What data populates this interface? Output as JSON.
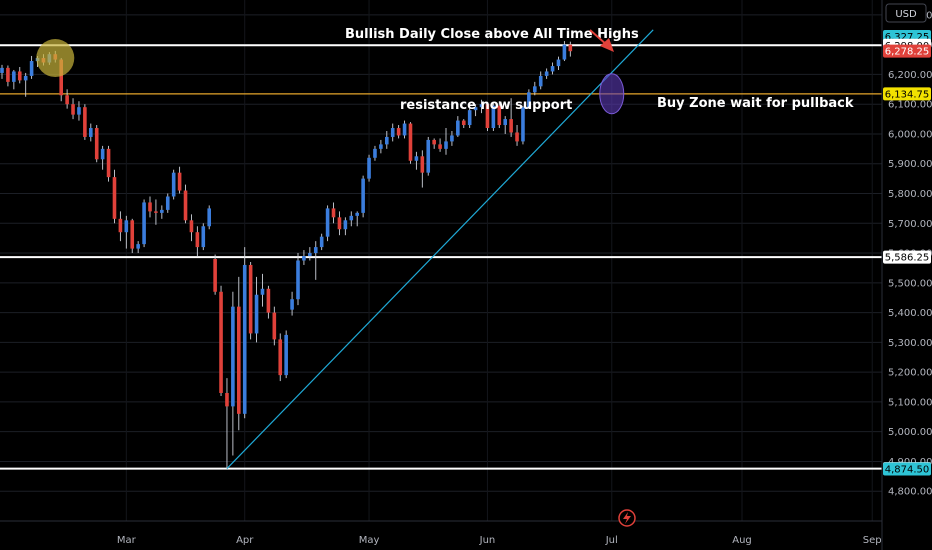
{
  "axis": {
    "currency": "USD"
  },
  "colors": {
    "background": "#000000",
    "up": "#3b7ddd",
    "down": "#e0413a",
    "trendline": "#1fa9d6",
    "resistance": "#e5a52a",
    "hline": "#ffffff",
    "badge_cyan": "#2ec4d6",
    "badge_red": "#e0413a",
    "badge_yellow": "#f2e100",
    "highlight_yellow": "#c8b43a",
    "highlight_purple": "#5b3bb5"
  },
  "chart_data": {
    "type": "candlestick",
    "xlabel": "",
    "ylabel": "",
    "ylim": [
      4700,
      6450
    ],
    "grid": true,
    "y_ticks": [
      4800,
      4900,
      5000,
      5100,
      5200,
      5300,
      5400,
      5500,
      5600,
      5700,
      5800,
      5900,
      6000,
      6100,
      6200,
      6300,
      6400
    ],
    "y_tick_labels": [
      "4,800.00",
      "4,900.00",
      "5,000.00",
      "5,100.00",
      "5,200.00",
      "5,300.00",
      "5,400.00",
      "5,500.00",
      "5,600.00",
      "5,700.00",
      "5,800.00",
      "5,900.00",
      "6,000.00",
      "6,100.00",
      "6,200.00",
      "6,300.00",
      "6,400.00"
    ],
    "x_labels": [
      {
        "label": "Mar",
        "index": 21
      },
      {
        "label": "Apr",
        "index": 41
      },
      {
        "label": "May",
        "index": 62
      },
      {
        "label": "Jun",
        "index": 82
      },
      {
        "label": "Jul",
        "index": 103
      },
      {
        "label": "Aug",
        "index": 125
      },
      {
        "label": "Sep",
        "index": 147
      }
    ],
    "candles": [
      {
        "o": 6205,
        "h": 6232,
        "l": 6185,
        "c": 6222
      },
      {
        "o": 6222,
        "h": 6230,
        "l": 6160,
        "c": 6175
      },
      {
        "o": 6175,
        "h": 6215,
        "l": 6150,
        "c": 6210
      },
      {
        "o": 6210,
        "h": 6225,
        "l": 6170,
        "c": 6180
      },
      {
        "o": 6180,
        "h": 6205,
        "l": 6125,
        "c": 6195
      },
      {
        "o": 6195,
        "h": 6262,
        "l": 6185,
        "c": 6245
      },
      {
        "o": 6245,
        "h": 6262,
        "l": 6225,
        "c": 6255
      },
      {
        "o": 6255,
        "h": 6268,
        "l": 6230,
        "c": 6240
      },
      {
        "o": 6240,
        "h": 6275,
        "l": 6232,
        "c": 6268
      },
      {
        "o": 6268,
        "h": 6279,
        "l": 6240,
        "c": 6250
      },
      {
        "o": 6250,
        "h": 6255,
        "l": 6110,
        "c": 6130
      },
      {
        "o": 6130,
        "h": 6150,
        "l": 6085,
        "c": 6100
      },
      {
        "o": 6100,
        "h": 6120,
        "l": 6050,
        "c": 6065
      },
      {
        "o": 6065,
        "h": 6110,
        "l": 6045,
        "c": 6090
      },
      {
        "o": 6090,
        "h": 6100,
        "l": 5980,
        "c": 5990
      },
      {
        "o": 5990,
        "h": 6035,
        "l": 5975,
        "c": 6020
      },
      {
        "o": 6020,
        "h": 6030,
        "l": 5905,
        "c": 5915
      },
      {
        "o": 5915,
        "h": 5960,
        "l": 5880,
        "c": 5950
      },
      {
        "o": 5950,
        "h": 5960,
        "l": 5840,
        "c": 5855
      },
      {
        "o": 5855,
        "h": 5880,
        "l": 5700,
        "c": 5715
      },
      {
        "o": 5715,
        "h": 5740,
        "l": 5640,
        "c": 5670
      },
      {
        "o": 5670,
        "h": 5725,
        "l": 5615,
        "c": 5710
      },
      {
        "o": 5710,
        "h": 5715,
        "l": 5600,
        "c": 5615
      },
      {
        "o": 5615,
        "h": 5640,
        "l": 5600,
        "c": 5630
      },
      {
        "o": 5630,
        "h": 5780,
        "l": 5620,
        "c": 5770
      },
      {
        "o": 5770,
        "h": 5790,
        "l": 5720,
        "c": 5740
      },
      {
        "o": 5740,
        "h": 5780,
        "l": 5695,
        "c": 5735
      },
      {
        "o": 5735,
        "h": 5760,
        "l": 5715,
        "c": 5745
      },
      {
        "o": 5745,
        "h": 5800,
        "l": 5735,
        "c": 5790
      },
      {
        "o": 5790,
        "h": 5880,
        "l": 5780,
        "c": 5870
      },
      {
        "o": 5870,
        "h": 5890,
        "l": 5800,
        "c": 5810
      },
      {
        "o": 5810,
        "h": 5830,
        "l": 5700,
        "c": 5710
      },
      {
        "o": 5710,
        "h": 5730,
        "l": 5640,
        "c": 5670
      },
      {
        "o": 5670,
        "h": 5690,
        "l": 5590,
        "c": 5620
      },
      {
        "o": 5620,
        "h": 5700,
        "l": 5610,
        "c": 5690
      },
      {
        "o": 5690,
        "h": 5760,
        "l": 5680,
        "c": 5750
      },
      {
        "o": 5580,
        "h": 5595,
        "l": 5460,
        "c": 5470
      },
      {
        "o": 5470,
        "h": 5490,
        "l": 5120,
        "c": 5130
      },
      {
        "o": 5130,
        "h": 5180,
        "l": 4875,
        "c": 5085
      },
      {
        "o": 5085,
        "h": 5470,
        "l": 4920,
        "c": 5420
      },
      {
        "o": 5420,
        "h": 5520,
        "l": 5005,
        "c": 5060
      },
      {
        "o": 5060,
        "h": 5620,
        "l": 5045,
        "c": 5560
      },
      {
        "o": 5560,
        "h": 5570,
        "l": 5310,
        "c": 5330
      },
      {
        "o": 5330,
        "h": 5520,
        "l": 5300,
        "c": 5460
      },
      {
        "o": 5460,
        "h": 5530,
        "l": 5420,
        "c": 5480
      },
      {
        "o": 5480,
        "h": 5490,
        "l": 5380,
        "c": 5400
      },
      {
        "o": 5400,
        "h": 5420,
        "l": 5290,
        "c": 5310
      },
      {
        "o": 5310,
        "h": 5330,
        "l": 5170,
        "c": 5190
      },
      {
        "o": 5190,
        "h": 5340,
        "l": 5180,
        "c": 5325
      },
      {
        "o": 5410,
        "h": 5470,
        "l": 5390,
        "c": 5445
      },
      {
        "o": 5445,
        "h": 5600,
        "l": 5425,
        "c": 5575
      },
      {
        "o": 5575,
        "h": 5610,
        "l": 5560,
        "c": 5590
      },
      {
        "o": 5590,
        "h": 5620,
        "l": 5575,
        "c": 5600
      },
      {
        "o": 5600,
        "h": 5640,
        "l": 5510,
        "c": 5620
      },
      {
        "o": 5620,
        "h": 5665,
        "l": 5610,
        "c": 5655
      },
      {
        "o": 5655,
        "h": 5760,
        "l": 5640,
        "c": 5750
      },
      {
        "o": 5750,
        "h": 5770,
        "l": 5700,
        "c": 5720
      },
      {
        "o": 5720,
        "h": 5740,
        "l": 5660,
        "c": 5680
      },
      {
        "o": 5680,
        "h": 5720,
        "l": 5660,
        "c": 5710
      },
      {
        "o": 5710,
        "h": 5740,
        "l": 5690,
        "c": 5725
      },
      {
        "o": 5725,
        "h": 5740,
        "l": 5690,
        "c": 5735
      },
      {
        "o": 5735,
        "h": 5860,
        "l": 5720,
        "c": 5850
      },
      {
        "o": 5850,
        "h": 5930,
        "l": 5840,
        "c": 5920
      },
      {
        "o": 5920,
        "h": 5960,
        "l": 5910,
        "c": 5950
      },
      {
        "o": 5950,
        "h": 5980,
        "l": 5935,
        "c": 5965
      },
      {
        "o": 5965,
        "h": 6010,
        "l": 5950,
        "c": 5990
      },
      {
        "o": 5990,
        "h": 6035,
        "l": 5975,
        "c": 6020
      },
      {
        "o": 6020,
        "h": 6030,
        "l": 5985,
        "c": 5995
      },
      {
        "o": 5995,
        "h": 6045,
        "l": 5985,
        "c": 6035
      },
      {
        "o": 6035,
        "h": 6040,
        "l": 5900,
        "c": 5910
      },
      {
        "o": 5910,
        "h": 5940,
        "l": 5880,
        "c": 5925
      },
      {
        "o": 5925,
        "h": 5945,
        "l": 5820,
        "c": 5870
      },
      {
        "o": 5870,
        "h": 5990,
        "l": 5860,
        "c": 5980
      },
      {
        "o": 5980,
        "h": 5985,
        "l": 5950,
        "c": 5965
      },
      {
        "o": 5965,
        "h": 5985,
        "l": 5940,
        "c": 5950
      },
      {
        "o": 5950,
        "h": 6020,
        "l": 5930,
        "c": 5975
      },
      {
        "o": 5975,
        "h": 6010,
        "l": 5960,
        "c": 5995
      },
      {
        "o": 5995,
        "h": 6060,
        "l": 5990,
        "c": 6045
      },
      {
        "o": 6045,
        "h": 6050,
        "l": 6020,
        "c": 6030
      },
      {
        "o": 6030,
        "h": 6090,
        "l": 6020,
        "c": 6080
      },
      {
        "o": 6080,
        "h": 6100,
        "l": 6060,
        "c": 6090
      },
      {
        "o": 6090,
        "h": 6115,
        "l": 6070,
        "c": 6100
      },
      {
        "o": 6100,
        "h": 6105,
        "l": 6010,
        "c": 6020
      },
      {
        "o": 6020,
        "h": 6105,
        "l": 6010,
        "c": 6095
      },
      {
        "o": 6095,
        "h": 6110,
        "l": 6020,
        "c": 6030
      },
      {
        "o": 6030,
        "h": 6060,
        "l": 6000,
        "c": 6050
      },
      {
        "o": 6050,
        "h": 6120,
        "l": 5990,
        "c": 6005
      },
      {
        "o": 6005,
        "h": 6030,
        "l": 5960,
        "c": 5975
      },
      {
        "o": 5975,
        "h": 6095,
        "l": 5965,
        "c": 6090
      },
      {
        "o": 6090,
        "h": 6150,
        "l": 6085,
        "c": 6140
      },
      {
        "o": 6140,
        "h": 6175,
        "l": 6130,
        "c": 6160
      },
      {
        "o": 6160,
        "h": 6210,
        "l": 6150,
        "c": 6195
      },
      {
        "o": 6195,
        "h": 6220,
        "l": 6185,
        "c": 6210
      },
      {
        "o": 6210,
        "h": 6240,
        "l": 6200,
        "c": 6228
      },
      {
        "o": 6228,
        "h": 6260,
        "l": 6215,
        "c": 6250
      },
      {
        "o": 6250,
        "h": 6312,
        "l": 6245,
        "c": 6300
      },
      {
        "o": 6300,
        "h": 6310,
        "l": 6260,
        "c": 6278
      }
    ],
    "candle_x_positions": [
      0,
      1,
      2,
      3,
      4,
      5,
      6,
      7,
      8,
      9,
      10,
      11,
      12,
      13,
      14,
      15,
      16,
      17,
      18,
      19,
      20,
      21,
      22,
      23,
      24,
      25,
      26,
      27,
      28,
      29,
      30,
      31,
      32,
      33,
      34,
      35,
      36,
      37,
      38,
      39,
      40,
      41,
      42,
      43,
      44,
      45,
      46,
      47,
      48,
      49,
      50,
      51,
      52,
      53,
      54,
      55,
      56,
      57,
      58,
      59,
      60,
      61,
      62,
      63,
      64,
      65,
      66,
      67,
      68,
      69,
      70,
      71,
      72,
      73,
      74,
      75,
      76,
      77,
      78,
      79,
      80,
      81,
      82,
      83,
      84,
      85,
      86,
      87,
      88,
      89,
      90,
      91,
      92,
      93,
      94,
      95,
      96,
      97,
      98,
      99,
      100,
      101,
      102,
      103,
      104
    ],
    "horizontal_lines": [
      {
        "value": 6298.0,
        "color": "#ffffff"
      },
      {
        "value": 6134.75,
        "color": "#e5a52a"
      },
      {
        "value": 5586.25,
        "color": "#ffffff"
      },
      {
        "value": 4876.0,
        "color": "#ffffff"
      }
    ],
    "trendline": {
      "from": {
        "index": 38,
        "value": 4876
      },
      "to": {
        "index": 110,
        "value": 6350
      }
    },
    "price_badges": [
      {
        "label": "6,327.25",
        "value": 6327.25,
        "bg": "#2ec4d6",
        "fg": "#000000"
      },
      {
        "label": "6,298.00",
        "value": 6298.0,
        "bg": "#ffffff",
        "fg": "#000000"
      },
      {
        "label": "6,278.25",
        "value": 6278.25,
        "bg": "#e0413a",
        "fg": "#ffffff"
      },
      {
        "label": "6,134.75",
        "value": 6134.75,
        "bg": "#f2e100",
        "fg": "#000000"
      },
      {
        "label": "5,586.25",
        "value": 5586.25,
        "bg": "#ffffff",
        "fg": "#000000"
      },
      {
        "label": "4,876.00",
        "value": 4876.0,
        "bg": "#ffffff",
        "fg": "#000000"
      },
      {
        "label": "4,874.50",
        "value": 4874.5,
        "bg": "#2ec4d6",
        "fg": "#000000"
      }
    ],
    "annotations": [
      {
        "text": "Bullish Daily Close above All Time Highs"
      },
      {
        "text": "resistance now support"
      },
      {
        "text": "Buy Zone wait for pullback"
      }
    ],
    "highlights": [
      {
        "shape": "circle",
        "index": 9,
        "value": 6255,
        "color": "#c8b43a"
      },
      {
        "shape": "ellipse",
        "index": 103,
        "value": 6135,
        "color": "#5b3bb5"
      }
    ]
  }
}
